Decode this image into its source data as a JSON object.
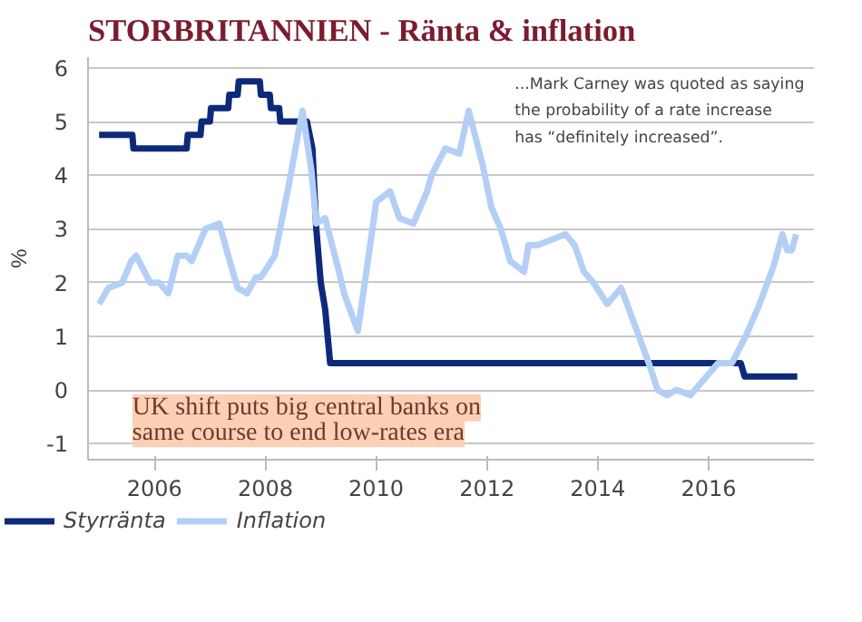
{
  "chart_data": {
    "type": "line",
    "title": "STORBRITANNIEN - Ränta & inflation",
    "ylabel": "%",
    "annotations": [
      "...Mark Carney was quoted as saying the probability of a rate increase has “definitely increased”.",
      "UK shift puts big central banks on same course to end low-rates era"
    ],
    "xlim": [
      2004.8,
      2017.9
    ],
    "xticks": [
      2006,
      2008,
      2010,
      2012,
      2014,
      2016
    ],
    "ylim": [
      -1.3,
      6.2
    ],
    "yticks": [
      -1,
      0,
      1,
      2,
      3,
      4,
      5,
      6
    ],
    "grid": "y",
    "legend": "bottom left",
    "line_style": "solid",
    "marker": "none",
    "series": [
      {
        "name": "Styrränta",
        "color": "#0d2a7a",
        "x": [
          2005.0,
          2005.6,
          2005.62,
          2006.58,
          2006.6,
          2006.83,
          2006.85,
          2007.0,
          2007.02,
          2007.33,
          2007.35,
          2007.5,
          2007.52,
          2007.9,
          2007.92,
          2008.08,
          2008.1,
          2008.25,
          2008.27,
          2008.75,
          2008.85,
          2008.92,
          2009.0,
          2009.08,
          2009.17,
          2016.58,
          2016.65,
          2017.6
        ],
        "values": [
          4.75,
          4.75,
          4.5,
          4.5,
          4.75,
          4.75,
          5.0,
          5.0,
          5.25,
          5.25,
          5.5,
          5.5,
          5.75,
          5.75,
          5.5,
          5.5,
          5.25,
          5.25,
          5.0,
          5.0,
          4.5,
          3.0,
          2.0,
          1.5,
          0.5,
          0.5,
          0.25,
          0.25
        ]
      },
      {
        "name": "Inflation",
        "color": "#b4cff5",
        "x": [
          2005.0,
          2005.17,
          2005.42,
          2005.58,
          2005.67,
          2005.92,
          2006.08,
          2006.25,
          2006.42,
          2006.58,
          2006.67,
          2006.92,
          2007.17,
          2007.25,
          2007.33,
          2007.5,
          2007.67,
          2007.83,
          2007.92,
          2008.17,
          2008.42,
          2008.67,
          2008.83,
          2008.92,
          2009.08,
          2009.33,
          2009.42,
          2009.67,
          2009.92,
          2010.0,
          2010.25,
          2010.42,
          2010.67,
          2010.92,
          2011.0,
          2011.25,
          2011.5,
          2011.67,
          2011.92,
          2012.08,
          2012.25,
          2012.42,
          2012.67,
          2012.75,
          2012.92,
          2013.17,
          2013.42,
          2013.58,
          2013.75,
          2013.92,
          2014.17,
          2014.42,
          2014.67,
          2014.92,
          2015.08,
          2015.25,
          2015.42,
          2015.67,
          2015.92,
          2016.17,
          2016.42,
          2016.67,
          2016.92,
          2017.17,
          2017.33,
          2017.42,
          2017.5,
          2017.58
        ],
        "values": [
          1.6,
          1.9,
          2.0,
          2.4,
          2.5,
          2.0,
          2.0,
          1.8,
          2.5,
          2.5,
          2.4,
          3.0,
          3.1,
          2.8,
          2.5,
          1.9,
          1.8,
          2.1,
          2.1,
          2.5,
          3.8,
          5.2,
          4.1,
          3.1,
          3.2,
          2.2,
          1.8,
          1.1,
          2.9,
          3.5,
          3.7,
          3.2,
          3.1,
          3.7,
          4.0,
          4.5,
          4.4,
          5.2,
          4.2,
          3.4,
          3.0,
          2.4,
          2.2,
          2.7,
          2.7,
          2.8,
          2.9,
          2.7,
          2.2,
          2.0,
          1.6,
          1.9,
          1.2,
          0.5,
          0.0,
          -0.1,
          0.0,
          -0.1,
          0.2,
          0.5,
          0.5,
          1.0,
          1.6,
          2.3,
          2.9,
          2.6,
          2.6,
          2.9
        ]
      }
    ]
  }
}
